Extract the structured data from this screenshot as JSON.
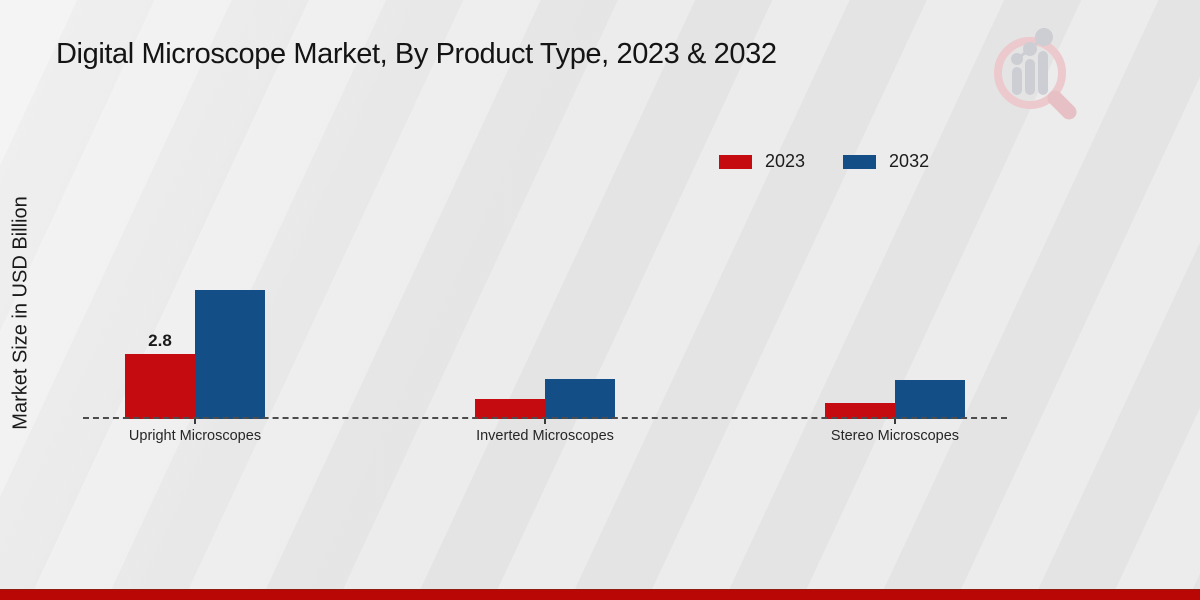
{
  "title": "Digital Microscope Market, By Product Type, 2023 & 2032",
  "ylabel": "Market Size in USD Billion",
  "legend": [
    {
      "label": "2023",
      "color": "#c50b0f"
    },
    {
      "label": "2032",
      "color": "#134e87"
    }
  ],
  "watermark_icon": "magnifier-bar-chart-watermark",
  "footer": {
    "color": "#b80704"
  },
  "chart_data": {
    "type": "bar",
    "title": "Digital Microscope Market, By Product Type, 2023 & 2032",
    "xlabel": "",
    "ylabel": "Market Size in USD Billion",
    "categories": [
      "Upright Microscopes",
      "Inverted Microscopes",
      "Stereo Microscopes"
    ],
    "series": [
      {
        "name": "2023",
        "color": "#c50b0f",
        "values": [
          2.8,
          0.86,
          0.7
        ]
      },
      {
        "name": "2032",
        "color": "#134e87",
        "values": [
          5.56,
          1.72,
          1.68
        ]
      }
    ],
    "point_labels": [
      {
        "category_index": 0,
        "series_index": 0,
        "text": "2.8"
      }
    ],
    "ylim": [
      0,
      6
    ],
    "grid": false,
    "baseline_style": "dashed",
    "legend_position": "top-right"
  }
}
